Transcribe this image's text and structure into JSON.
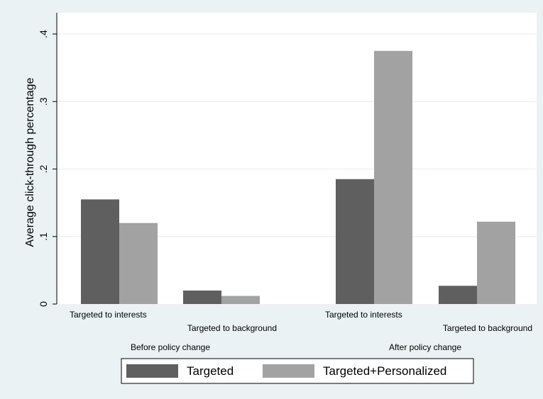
{
  "chart_data": {
    "type": "bar",
    "title": "",
    "ylabel": "Average click-through percentage",
    "xlabel": "",
    "ylim": [
      0,
      0.4
    ],
    "y_ticks": [
      {
        "value": 0,
        "label": "0"
      },
      {
        "value": 0.1,
        "label": ".1"
      },
      {
        "value": 0.2,
        "label": ".2"
      },
      {
        "value": 0.3,
        "label": ".3"
      },
      {
        "value": 0.4,
        "label": ".4"
      }
    ],
    "grid": true,
    "legend_position": "bottom",
    "groups": [
      {
        "label": "Before policy change",
        "subgroups": [
          "Targeted to interests",
          "Targeted to background"
        ]
      },
      {
        "label": "After policy change",
        "subgroups": [
          "Targeted to interests",
          "Targeted to background"
        ]
      }
    ],
    "series": [
      {
        "name": "Targeted",
        "color": "#5f5f5f",
        "values": [
          0.155,
          0.02,
          0.185,
          0.027
        ]
      },
      {
        "name": "Targeted+Personalized",
        "color": "#a2a2a2",
        "values": [
          0.12,
          0.012,
          0.375,
          0.122
        ]
      }
    ]
  },
  "colors": {
    "background": "#eaf2f3",
    "plot_area": "#ffffff",
    "grid": "#e6eef0",
    "axis": "#000000"
  }
}
